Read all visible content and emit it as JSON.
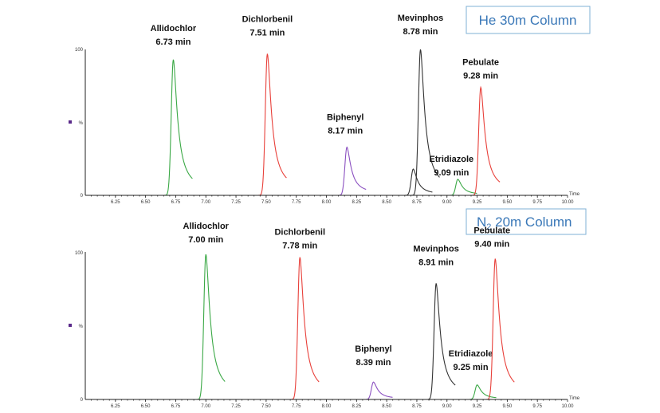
{
  "chart_data": [
    {
      "type": "line",
      "title": "He 30m Column",
      "xlabel": "Time",
      "x_ticks": [
        "6.25",
        "6.50",
        "6.75",
        "7.00",
        "7.25",
        "7.50",
        "7.75",
        "8.00",
        "8.25",
        "8.50",
        "8.75",
        "9.00",
        "9.25",
        "9.50",
        "9.75",
        "10.00"
      ],
      "xlim": [
        6.0,
        10.0
      ],
      "y_ticks": [
        "100",
        "%",
        "0"
      ],
      "ylim": [
        0,
        100
      ],
      "peaks": [
        {
          "name": "Allidochlor",
          "time_label": "6.73 min",
          "rt": 6.73,
          "height": 93,
          "color": "#3aa845"
        },
        {
          "name": "Dichlorbenil",
          "time_label": "7.51 min",
          "rt": 7.51,
          "height": 97,
          "color": "#e8403a"
        },
        {
          "name": "Biphenyl",
          "time_label": "8.17 min",
          "rt": 8.17,
          "height": 33,
          "color": "#8a4fc0"
        },
        {
          "name": "Mevinphos",
          "time_label": "8.78 min",
          "rt": 8.78,
          "height": 100,
          "color": "#333333"
        },
        {
          "name": "",
          "time_label": "",
          "rt": 8.72,
          "height": 18,
          "color": "#333333"
        },
        {
          "name": "Etridiazole",
          "time_label": "9.09 min",
          "rt": 9.09,
          "height": 11,
          "color": "#3aa845"
        },
        {
          "name": "Pebulate",
          "time_label": "9.28 min",
          "rt": 9.28,
          "height": 74,
          "color": "#e8403a"
        }
      ]
    },
    {
      "type": "line",
      "title_main": "N",
      "title_sub": "2",
      "title_rest": " 20m Column",
      "xlabel": "Time",
      "x_ticks": [
        "6.25",
        "6.50",
        "6.75",
        "7.00",
        "7.25",
        "7.50",
        "7.75",
        "8.00",
        "8.25",
        "8.50",
        "8.75",
        "9.00",
        "9.25",
        "9.50",
        "9.75",
        "10.00"
      ],
      "xlim": [
        6.0,
        10.0
      ],
      "y_ticks": [
        "100",
        "%",
        "0"
      ],
      "ylim": [
        0,
        100
      ],
      "peaks": [
        {
          "name": "Allidochlor",
          "time_label": "7.00 min",
          "rt": 7.0,
          "height": 100,
          "color": "#3aa845"
        },
        {
          "name": "Dichlorbenil",
          "time_label": "7.78 min",
          "rt": 7.78,
          "height": 98,
          "color": "#e8403a"
        },
        {
          "name": "Biphenyl",
          "time_label": "8.39 min",
          "rt": 8.39,
          "height": 12,
          "color": "#8a4fc0"
        },
        {
          "name": "Mevinphos",
          "time_label": "8.91 min",
          "rt": 8.91,
          "height": 80,
          "color": "#333333"
        },
        {
          "name": "Etridiazole",
          "time_label": "9.25 min",
          "rt": 9.25,
          "height": 10,
          "color": "#3aa845"
        },
        {
          "name": "Pebulate",
          "time_label": "9.40 min",
          "rt": 9.4,
          "height": 97,
          "color": "#e8403a"
        }
      ]
    }
  ]
}
